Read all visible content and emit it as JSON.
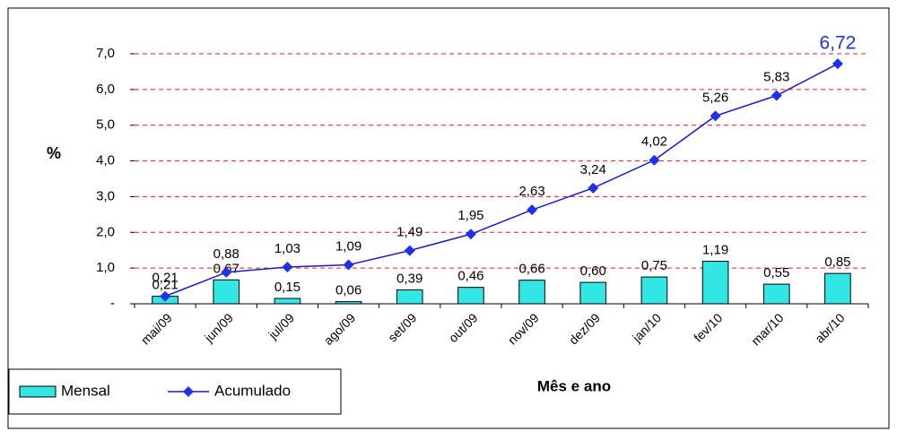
{
  "chart_data": {
    "type": "bar_line",
    "x_label": "Mês e ano",
    "y_label": "%",
    "categories": [
      "mai/09",
      "jun/09",
      "jul/09",
      "ago/09",
      "set/09",
      "out/09",
      "nov/09",
      "dez/09",
      "jan/10",
      "fev/10",
      "mar/10",
      "abr/10"
    ],
    "series": [
      {
        "name": "Mensal",
        "type": "bar",
        "color": "#33e6e6",
        "values": [
          0.21,
          0.67,
          0.15,
          0.06,
          0.39,
          0.46,
          0.66,
          0.6,
          0.75,
          1.19,
          0.55,
          0.85
        ],
        "value_labels": [
          "0,21",
          "0,67",
          "0,15",
          "0,06",
          "0,39",
          "0,46",
          "0,66",
          "0,60",
          "0,75",
          "1,19",
          "0,55",
          "0,85"
        ]
      },
      {
        "name": "Acumulado",
        "type": "line",
        "color": "#1a1acc",
        "values": [
          0.21,
          0.88,
          1.03,
          1.09,
          1.49,
          1.95,
          2.63,
          3.24,
          4.02,
          5.26,
          5.83,
          6.72
        ],
        "value_labels": [
          "0,21",
          "0,88",
          "1,03",
          "1,09",
          "1,49",
          "1,95",
          "2,63",
          "3,24",
          "4,02",
          "5,26",
          "5,83",
          "6,72"
        ]
      }
    ],
    "ylim": [
      0,
      7
    ],
    "yticks": [
      {
        "value": 0,
        "label": "-"
      },
      {
        "value": 1,
        "label": "1,0"
      },
      {
        "value": 2,
        "label": "2,0"
      },
      {
        "value": 3,
        "label": "3,0"
      },
      {
        "value": 4,
        "label": "4,0"
      },
      {
        "value": 5,
        "label": "5,0"
      },
      {
        "value": 6,
        "label": "6,0"
      },
      {
        "value": 7,
        "label": "7,0"
      }
    ],
    "grid": true,
    "legend": "bottom-left"
  }
}
